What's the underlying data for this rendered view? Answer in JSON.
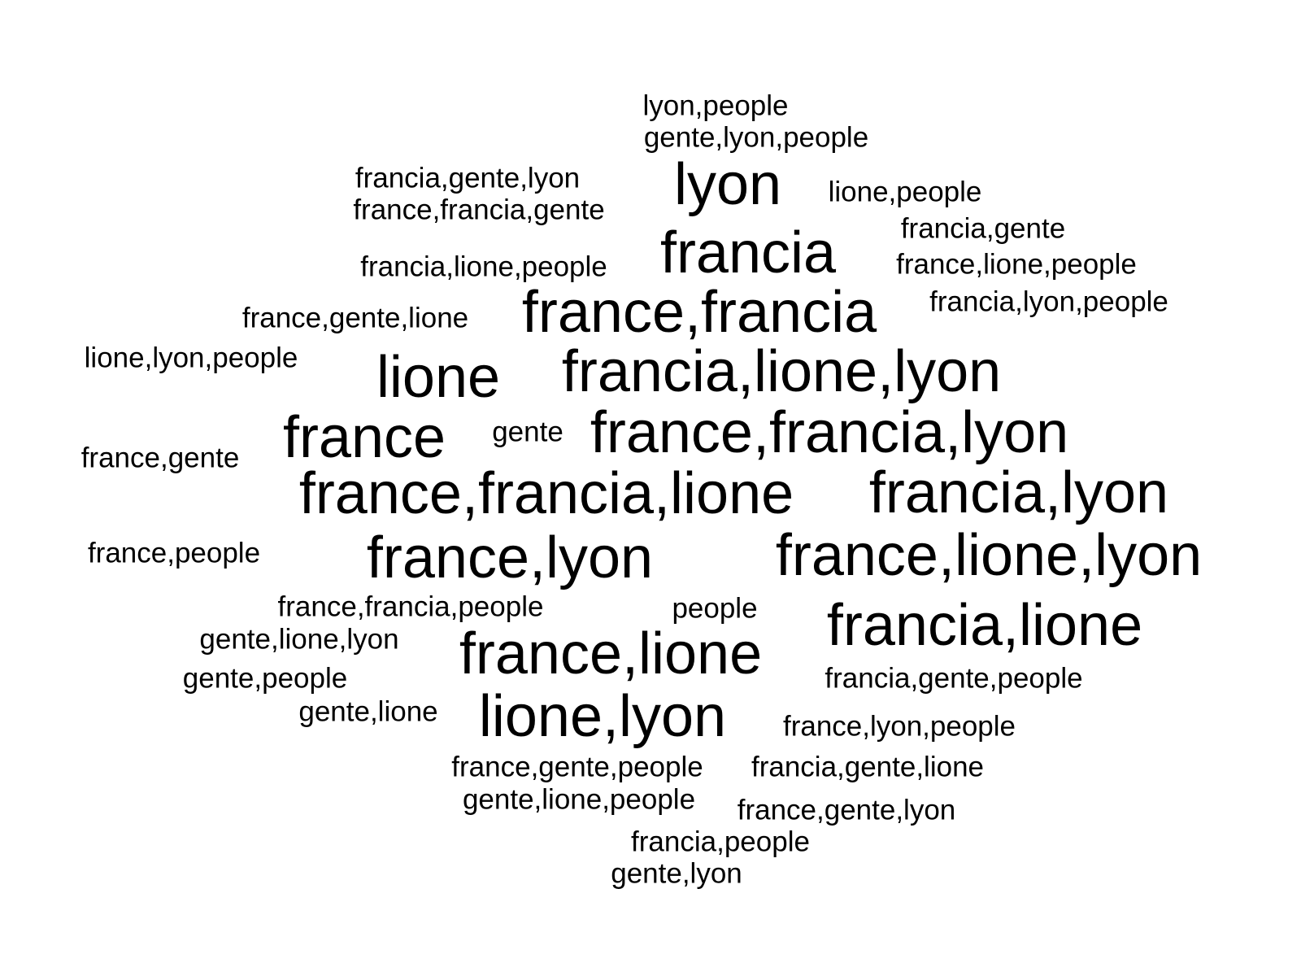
{
  "words": [
    {
      "text": "lyon,people",
      "size": "small"
    },
    {
      "text": "gente,lyon,people",
      "size": "small"
    },
    {
      "text": "francia,gente,lyon",
      "size": "small"
    },
    {
      "text": "lyon",
      "size": "large"
    },
    {
      "text": "lione,people",
      "size": "small"
    },
    {
      "text": "france,francia,gente",
      "size": "small"
    },
    {
      "text": "francia,gente",
      "size": "small"
    },
    {
      "text": "francia",
      "size": "large"
    },
    {
      "text": "francia,lione,people",
      "size": "small"
    },
    {
      "text": "france,lione,people",
      "size": "small"
    },
    {
      "text": "france,francia",
      "size": "large"
    },
    {
      "text": "francia,lyon,people",
      "size": "small"
    },
    {
      "text": "france,gente,lione",
      "size": "small"
    },
    {
      "text": "lione,lyon,people",
      "size": "small"
    },
    {
      "text": "lione",
      "size": "large"
    },
    {
      "text": "francia,lione,lyon",
      "size": "large"
    },
    {
      "text": "france",
      "size": "large"
    },
    {
      "text": "gente",
      "size": "small"
    },
    {
      "text": "france,francia,lyon",
      "size": "large"
    },
    {
      "text": "france,gente",
      "size": "small"
    },
    {
      "text": "france,francia,lione",
      "size": "large"
    },
    {
      "text": "francia,lyon",
      "size": "large"
    },
    {
      "text": "france,people",
      "size": "small"
    },
    {
      "text": "france,lyon",
      "size": "large"
    },
    {
      "text": "france,lione,lyon",
      "size": "large"
    },
    {
      "text": "france,francia,people",
      "size": "small"
    },
    {
      "text": "people",
      "size": "small"
    },
    {
      "text": "francia,lione",
      "size": "large"
    },
    {
      "text": "gente,lione,lyon",
      "size": "small"
    },
    {
      "text": "france,lione",
      "size": "large"
    },
    {
      "text": "gente,people",
      "size": "small"
    },
    {
      "text": "francia,gente,people",
      "size": "small"
    },
    {
      "text": "gente,lione",
      "size": "small"
    },
    {
      "text": "lione,lyon",
      "size": "large"
    },
    {
      "text": "france,lyon,people",
      "size": "small"
    },
    {
      "text": "france,gente,people",
      "size": "small"
    },
    {
      "text": "francia,gente,lione",
      "size": "small"
    },
    {
      "text": "gente,lione,people",
      "size": "small"
    },
    {
      "text": "france,gente,lyon",
      "size": "small"
    },
    {
      "text": "francia,people",
      "size": "small"
    },
    {
      "text": "gente,lyon",
      "size": "small"
    }
  ]
}
